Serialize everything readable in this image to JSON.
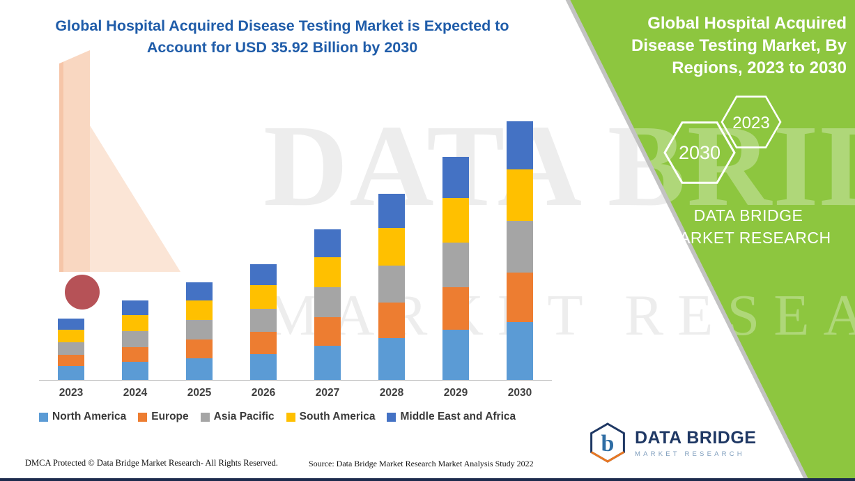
{
  "left_panel": {
    "title_line1": "Global Hospital Acquired Disease Testing Market is Expected to",
    "title_line2": "Account for USD 35.92 Billion by 2030"
  },
  "chart_data": {
    "type": "bar",
    "stacked": true,
    "title": "Global Hospital Acquired Disease Testing Market is Expected to Account for USD 35.92 Billion by 2030",
    "unit": "USD Billion",
    "categories": [
      "2023",
      "2024",
      "2025",
      "2026",
      "2027",
      "2028",
      "2029",
      "2030"
    ],
    "series": [
      {
        "name": "North America",
        "color": "#5B9BD5",
        "values": [
          1.91,
          2.48,
          3.04,
          3.62,
          4.7,
          5.83,
          6.98,
          8.08
        ]
      },
      {
        "name": "Europe",
        "color": "#ED7D31",
        "values": [
          1.62,
          2.09,
          2.57,
          3.06,
          3.97,
          4.92,
          5.89,
          6.82
        ]
      },
      {
        "name": "Asia Pacific",
        "color": "#A5A5A5",
        "values": [
          1.7,
          2.2,
          2.7,
          3.22,
          4.18,
          5.18,
          6.2,
          7.18
        ]
      },
      {
        "name": "South America",
        "color": "#FFC000",
        "values": [
          1.7,
          2.2,
          2.7,
          3.22,
          4.18,
          5.18,
          6.2,
          7.18
        ]
      },
      {
        "name": "Middle East and Africa",
        "color": "#4472C4",
        "values": [
          1.57,
          2.04,
          2.5,
          2.98,
          3.87,
          4.79,
          5.74,
          6.65
        ]
      }
    ],
    "totals": [
      8.5,
      11.01,
      13.51,
      16.1,
      20.9,
      25.9,
      31.01,
      35.91
    ],
    "ylim": [
      0,
      36
    ],
    "grid": false,
    "legend_position": "bottom",
    "annotation": "USD 35.92 Billion by 2030"
  },
  "right_panel": {
    "title": "Global Hospital Acquired Disease Testing Market, By Regions, 2023 to 2030",
    "hexagons": [
      {
        "label": "2030"
      },
      {
        "label": "2023"
      }
    ],
    "brand_line1": "DATA BRIDGE MARKET",
    "brand_line2": "RESEARCH"
  },
  "watermark": {
    "line1": "DATA BRIDGE",
    "line2": "MARKET RESEARCH"
  },
  "logo": {
    "letter": "b",
    "name": "DATA BRIDGE",
    "subtitle": "MARKET RESEARCH"
  },
  "footer": {
    "copyright": "DMCA Protected © Data Bridge Market Research- All Rights Reserved.",
    "source": "Source: Data Bridge Market Research Market Analysis Study 2022"
  },
  "colors": {
    "brand_green": "#8DC63F",
    "title_blue": "#1F5CA9",
    "logo_navy": "#1F3864"
  }
}
